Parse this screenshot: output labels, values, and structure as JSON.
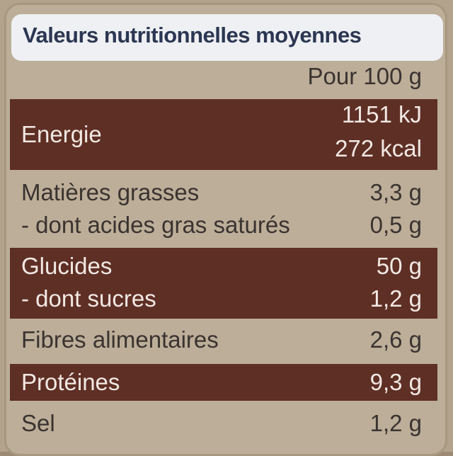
{
  "title": "Valeurs nutritionnelles moyennes",
  "header": "Pour 100 g",
  "rows": [
    {
      "label": "Energie",
      "values": [
        "1151 kJ",
        "272 kcal"
      ]
    },
    {
      "label": "Matières grasses",
      "value": "3,3 g"
    },
    {
      "label": "- dont acides gras saturés",
      "value": "0,5 g"
    },
    {
      "label": "Glucides",
      "value": "50 g"
    },
    {
      "label": "- dont sucres",
      "value": "1,2 g"
    },
    {
      "label": "Fibres alimentaires",
      "value": "2,6 g"
    },
    {
      "label": "Protéines",
      "value": "9,3 g"
    },
    {
      "label": "Sel",
      "value": "1,2 g"
    }
  ]
}
